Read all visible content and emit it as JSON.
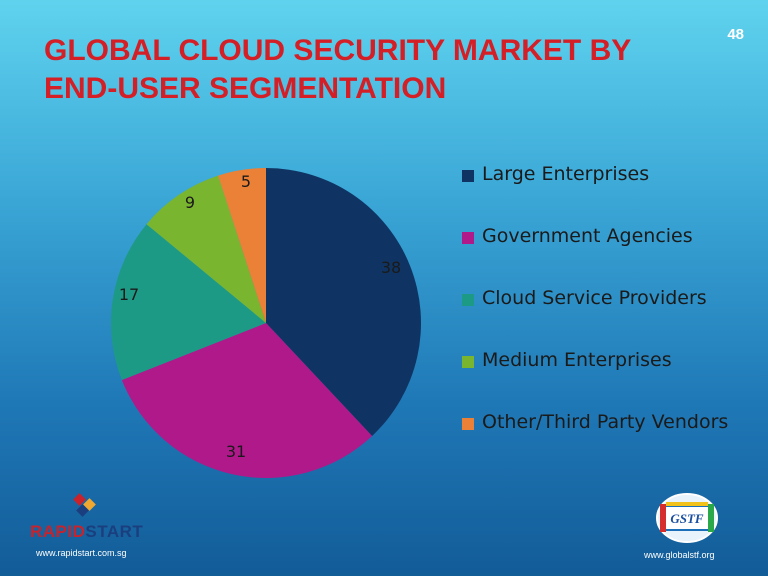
{
  "slide_number": "48",
  "title_lines": [
    "GLOBAL CLOUD SECURITY MARKET BY",
    "END-USER SEGMENTATION"
  ],
  "chart_data": {
    "type": "pie",
    "title": "",
    "categories": [
      "Large Enterprises",
      "Government Agencies",
      "Cloud Service Providers",
      "Medium Enterprises",
      "Other/Third Party Vendors"
    ],
    "values": [
      38,
      31,
      17,
      9,
      5
    ],
    "colors": [
      "#0f3463",
      "#b0198a",
      "#1d9a86",
      "#7ab530",
      "#ea8136"
    ],
    "data_labels": [
      "38",
      "31",
      "17",
      "9",
      "5"
    ],
    "legend_position": "right",
    "start_angle_deg": 0,
    "direction": "clockwise"
  },
  "legend": [
    {
      "label": "Large Enterprises",
      "color": "#0f3463"
    },
    {
      "label": "Government Agencies",
      "color": "#b0198a"
    },
    {
      "label": "Cloud Service Providers",
      "color": "#1d9a86"
    },
    {
      "label": "Medium Enterprises",
      "color": "#7ab530"
    },
    {
      "label": "Other/Third Party Vendors",
      "color": "#ea8136"
    }
  ],
  "footer": {
    "left_logo_part1": "RAPID",
    "left_logo_part2": "START",
    "left_url": "www.rapidstart.com.sg",
    "right_logo_text": "GSTF",
    "right_url": "www.globalstf.org"
  }
}
